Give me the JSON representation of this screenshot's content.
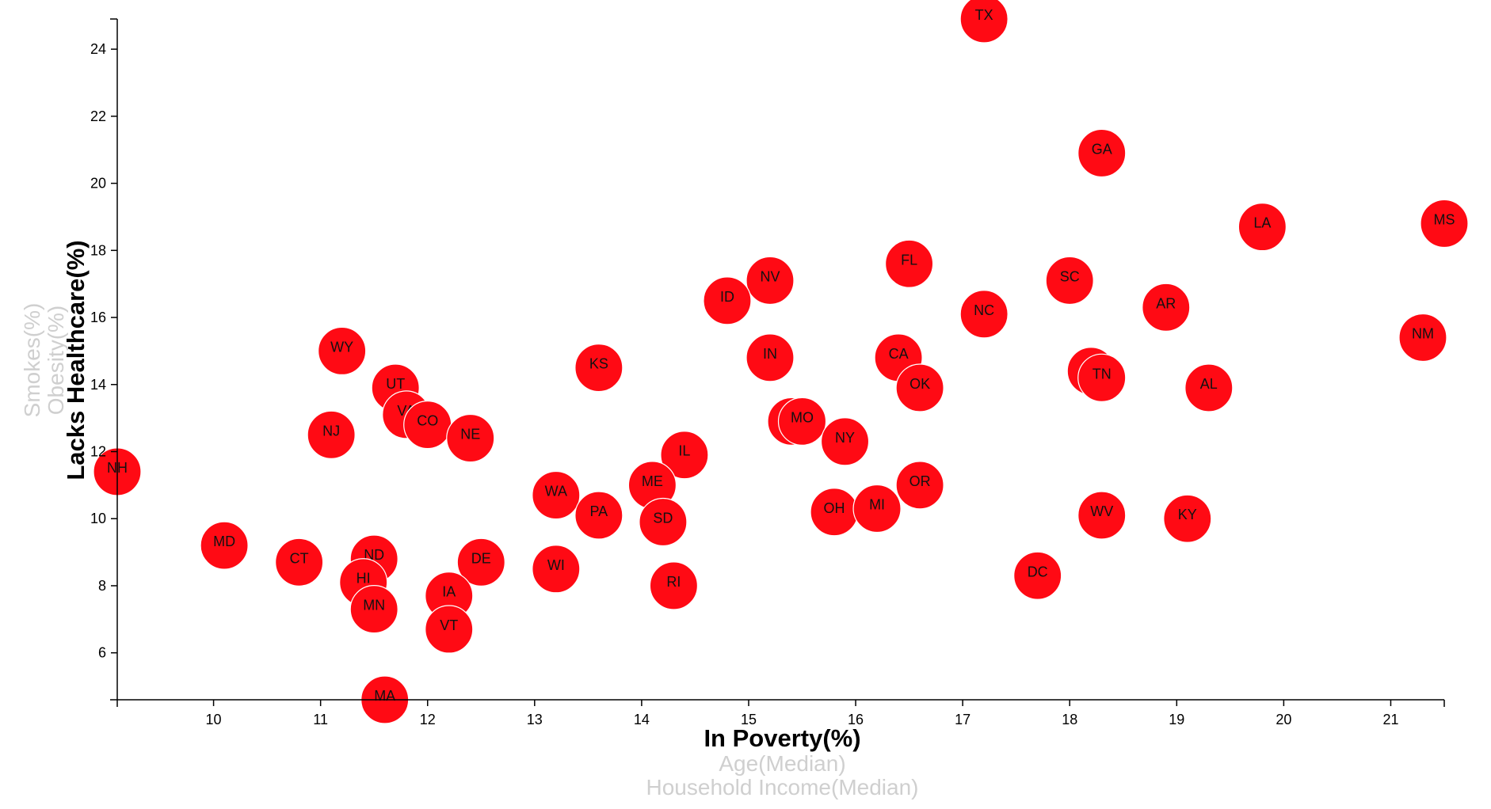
{
  "chart_data": {
    "type": "scatter",
    "x_axis": {
      "active_label": "In Poverty(%)",
      "inactive_labels": [
        "Age(Median)",
        "Household Income(Median)"
      ],
      "ticks": [
        10,
        11,
        12,
        13,
        14,
        15,
        16,
        17,
        18,
        19,
        20,
        21
      ],
      "range": [
        9.1,
        21.5
      ]
    },
    "y_axis": {
      "active_label": "Lacks Healthcare(%)",
      "inactive_labels": [
        "Obesity(%)",
        "Smokes(%)"
      ],
      "ticks": [
        6,
        8,
        10,
        12,
        14,
        16,
        18,
        20,
        22,
        24
      ],
      "range": [
        4.6,
        24.9
      ]
    },
    "colors": {
      "bubble": "#ff0a14",
      "label": "#111111"
    },
    "points": [
      {
        "abbr": "TX",
        "x": 17.2,
        "y": 24.9
      },
      {
        "abbr": "GA",
        "x": 18.3,
        "y": 20.9
      },
      {
        "abbr": "MS",
        "x": 21.5,
        "y": 18.8
      },
      {
        "abbr": "LA",
        "x": 19.8,
        "y": 18.7
      },
      {
        "abbr": "FL",
        "x": 16.5,
        "y": 17.6
      },
      {
        "abbr": "NV",
        "x": 15.2,
        "y": 17.1
      },
      {
        "abbr": "SC",
        "x": 18.0,
        "y": 17.1
      },
      {
        "abbr": "ID",
        "x": 14.8,
        "y": 16.5
      },
      {
        "abbr": "AR",
        "x": 18.9,
        "y": 16.3
      },
      {
        "abbr": "NC",
        "x": 17.2,
        "y": 16.1
      },
      {
        "abbr": "NM",
        "x": 21.3,
        "y": 15.4
      },
      {
        "abbr": "WY",
        "x": 11.2,
        "y": 15.0
      },
      {
        "abbr": "IN",
        "x": 15.2,
        "y": 14.8
      },
      {
        "abbr": "CA",
        "x": 16.4,
        "y": 14.8
      },
      {
        "abbr": "KS",
        "x": 13.6,
        "y": 14.5
      },
      {
        "abbr": "AZ",
        "x": 18.2,
        "y": 14.4
      },
      {
        "abbr": "TN",
        "x": 18.3,
        "y": 14.2
      },
      {
        "abbr": "UT",
        "x": 11.7,
        "y": 13.9
      },
      {
        "abbr": "OK",
        "x": 16.6,
        "y": 13.9
      },
      {
        "abbr": "AL",
        "x": 19.3,
        "y": 13.9
      },
      {
        "abbr": "VA",
        "x": 11.8,
        "y": 13.1
      },
      {
        "abbr": "MT",
        "x": 15.4,
        "y": 12.9
      },
      {
        "abbr": "MO",
        "x": 15.5,
        "y": 12.9
      },
      {
        "abbr": "CO",
        "x": 12.0,
        "y": 12.8
      },
      {
        "abbr": "NJ",
        "x": 11.1,
        "y": 12.5
      },
      {
        "abbr": "NE",
        "x": 12.4,
        "y": 12.4
      },
      {
        "abbr": "NY",
        "x": 15.9,
        "y": 12.3
      },
      {
        "abbr": "IL",
        "x": 14.4,
        "y": 11.9
      },
      {
        "abbr": "NH",
        "x": 9.1,
        "y": 11.4
      },
      {
        "abbr": "ME",
        "x": 14.1,
        "y": 11.0
      },
      {
        "abbr": "OR",
        "x": 16.6,
        "y": 11.0
      },
      {
        "abbr": "WA",
        "x": 13.2,
        "y": 10.7
      },
      {
        "abbr": "OH",
        "x": 15.8,
        "y": 10.2
      },
      {
        "abbr": "MI",
        "x": 16.2,
        "y": 10.3
      },
      {
        "abbr": "PA",
        "x": 13.6,
        "y": 10.1
      },
      {
        "abbr": "WV",
        "x": 18.3,
        "y": 10.1
      },
      {
        "abbr": "KY",
        "x": 19.1,
        "y": 10.0
      },
      {
        "abbr": "SD",
        "x": 14.2,
        "y": 9.9
      },
      {
        "abbr": "MD",
        "x": 10.1,
        "y": 9.2
      },
      {
        "abbr": "ND",
        "x": 11.5,
        "y": 8.8
      },
      {
        "abbr": "CT",
        "x": 10.8,
        "y": 8.7
      },
      {
        "abbr": "DE",
        "x": 12.5,
        "y": 8.7
      },
      {
        "abbr": "WI",
        "x": 13.2,
        "y": 8.5
      },
      {
        "abbr": "DC",
        "x": 17.7,
        "y": 8.3
      },
      {
        "abbr": "HI",
        "x": 11.4,
        "y": 8.1
      },
      {
        "abbr": "RI",
        "x": 14.3,
        "y": 8.0
      },
      {
        "abbr": "IA",
        "x": 12.2,
        "y": 7.7
      },
      {
        "abbr": "MN",
        "x": 11.5,
        "y": 7.3
      },
      {
        "abbr": "VT",
        "x": 12.2,
        "y": 6.7
      },
      {
        "abbr": "MA",
        "x": 11.6,
        "y": 4.6
      }
    ]
  }
}
